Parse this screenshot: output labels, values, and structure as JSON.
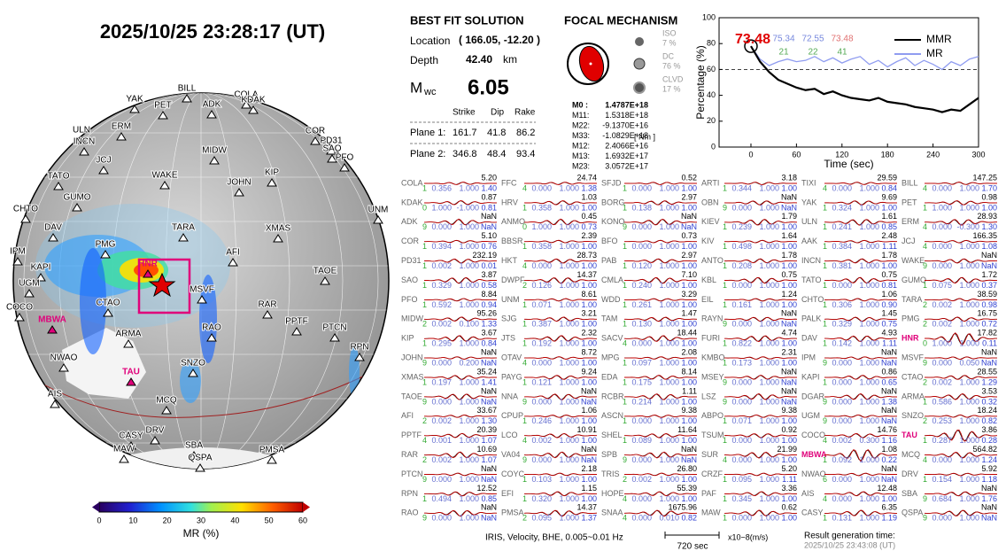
{
  "title": "2025/10/25  23:28:17 (UT)",
  "best_fit": {
    "heading": "BEST FIT SOLUTION",
    "location_label": "Location",
    "location": "( 166.05, -12.20 )",
    "depth_label": "Depth",
    "depth": "42.40",
    "depth_unit": "km",
    "mag_symbol": "M",
    "mag_sub": "wc",
    "magnitude": "6.05",
    "columns": [
      "Strike",
      "Dip",
      "Rake"
    ],
    "planes": [
      [
        "Plane 1:",
        "161.7",
        "41.8",
        "86.2"
      ],
      [
        "Plane 2:",
        "346.8",
        "48.4",
        "93.4"
      ]
    ]
  },
  "focal": {
    "heading": "FOCAL MECHANISM",
    "components": [
      [
        "ISO",
        "7 %"
      ],
      [
        "DC",
        "76 %"
      ],
      [
        "CLVD",
        "17 %"
      ]
    ],
    "moments": [
      [
        "M0 :",
        "1.4787E+18"
      ],
      [
        "M11:",
        "1.5318E+18"
      ],
      [
        "M22:",
        "-9.1370E+16"
      ],
      [
        "M33:",
        "-1.0829E+18"
      ],
      [
        "M12:",
        "2.4066E+16"
      ],
      [
        "M13:",
        "1.6932E+17"
      ],
      [
        "M23:",
        "3.0572E+17"
      ]
    ],
    "unit": "[ Nm ]"
  },
  "chart_data": {
    "type": "line",
    "xlabel": "Time (sec)",
    "ylabel": "Percentage (%)",
    "xlim": [
      -42,
      300
    ],
    "ylim": [
      0,
      100
    ],
    "xticks": [
      0,
      60,
      120,
      180,
      240,
      300
    ],
    "yticks": [
      0,
      20,
      40,
      60,
      80,
      100
    ],
    "threshold": 60,
    "x": [
      0,
      12,
      24,
      36,
      48,
      60,
      72,
      84,
      96,
      108,
      120,
      132,
      144,
      156,
      168,
      180,
      192,
      204,
      216,
      228,
      240,
      252,
      264,
      276,
      288,
      300
    ],
    "series": [
      {
        "name": "MMR",
        "color": "#000000",
        "values": [
          78,
          66,
          58,
          52,
          49,
          46,
          44,
          45,
          41,
          43,
          40,
          38,
          37,
          36,
          38,
          35,
          34,
          33,
          31,
          30,
          29,
          27,
          29,
          28,
          33,
          38
        ]
      },
      {
        "name": "MR",
        "color": "#8f9cf0",
        "values": [
          78,
          68,
          63,
          66,
          68,
          66,
          67,
          70,
          66,
          69,
          65,
          68,
          70,
          64,
          67,
          62,
          66,
          69,
          63,
          67,
          64,
          60,
          66,
          63,
          68,
          70
        ]
      }
    ],
    "annotations": {
      "best": "73.48",
      "mr": [
        "75.34",
        "72.55",
        "73.48"
      ],
      "counts": [
        "21",
        "22",
        "41"
      ]
    }
  },
  "colorbar": {
    "label": "MR (%)",
    "ticks": [
      0,
      10,
      20,
      30,
      40,
      50,
      60
    ]
  },
  "map_stations": [
    "BILL",
    "YAK",
    "PET",
    "ADK",
    "COLA",
    "KDAK",
    "ULN",
    "ERM",
    "INCN",
    "COR",
    "PD31",
    "SAO",
    "PFO",
    "JCJ",
    "MIDW",
    "KIP",
    "TATO",
    "WAKE",
    "JOHN",
    "GUMO",
    "UNM",
    "CHTO",
    "TARA",
    "DAV",
    "XMAS",
    "IPM",
    "KAPI",
    "PMG",
    "HNR",
    "UGM",
    "AFI",
    "TAOE",
    "MSVF",
    "COCO",
    "CTAO",
    "RAR",
    "PPTF",
    "MBWA",
    "ARMA",
    "RAO",
    "PTCN",
    "RPN",
    "NWAO",
    "SNZO",
    "TAU",
    "AIS",
    "MCQ",
    "CASY",
    "DRV",
    "SBA",
    "MAW",
    "QSPA",
    "PMSA"
  ],
  "highlight": [
    "HNR",
    "MBWA",
    "TAU"
  ],
  "stations": [
    [
      "COLA",
      "5.20",
      "1",
      "0.356",
      "1.000",
      "1.40"
    ],
    [
      "KDAK",
      "0.87",
      "0",
      "1.000",
      "-1.000",
      "0.81"
    ],
    [
      "ADK",
      "NaN",
      "9",
      "0.000",
      "1.000",
      "NaN"
    ],
    [
      "COR",
      "5.10",
      "1",
      "0.394",
      "1.000",
      "0.76"
    ],
    [
      "PD31",
      "232.19",
      "1",
      "0.002",
      "1.000",
      "0.01"
    ],
    [
      "SAO",
      "3.87",
      "1",
      "0.329",
      "1.000",
      "0.58"
    ],
    [
      "PFO",
      "8.84",
      "1",
      "0.592",
      "1.000",
      "0.94"
    ],
    [
      "MIDW",
      "95.26",
      "2",
      "0.002",
      "0.100",
      "1.33"
    ],
    [
      "KIP",
      "3.67",
      "1",
      "0.295",
      "1.000",
      "0.84"
    ],
    [
      "JOHN",
      "NaN",
      "9",
      "0.000",
      "0.200",
      "NaN"
    ],
    [
      "XMAS",
      "35.24",
      "1",
      "0.197",
      "1.000",
      "1.41"
    ],
    [
      "TAOE",
      "NaN",
      "9",
      "0.000",
      "1.000",
      "NaN"
    ],
    [
      "AFI",
      "33.67",
      "2",
      "0.002",
      "1.000",
      "1.30"
    ],
    [
      "PPTF",
      "20.39",
      "4",
      "0.001",
      "1.000",
      "1.07"
    ],
    [
      "RAR",
      "10.69",
      "2",
      "0.002",
      "1.000",
      "1.07"
    ],
    [
      "PTCN",
      "NaN",
      "9",
      "0.000",
      "1.000",
      "NaN"
    ],
    [
      "RPN",
      "12.52",
      "1",
      "0.494",
      "1.000",
      "0.85"
    ],
    [
      "RAO",
      "NaN",
      "9",
      "0.000",
      "1.000",
      "NaN"
    ],
    [
      "FFC",
      "24.74",
      "4",
      "0.000",
      "1.000",
      "1.38"
    ],
    [
      "HRV",
      "1.03",
      "1",
      "0.358",
      "1.000",
      "1.00"
    ],
    [
      "ANMO",
      "0.45",
      "0",
      "1.000",
      "1.000",
      "0.73"
    ],
    [
      "BBSR",
      "2.39",
      "1",
      "0.358",
      "1.000",
      "1.00"
    ],
    [
      "HKT",
      "28.73",
      "4",
      "0.000",
      "1.000",
      "1.00"
    ],
    [
      "DWPF",
      "14.37",
      "2",
      "0.126",
      "1.000",
      "1.00"
    ],
    [
      "UNM",
      "8.61",
      "1",
      "0.071",
      "1.000",
      "1.00"
    ],
    [
      "SJG",
      "3.21",
      "1",
      "0.387",
      "1.000",
      "1.00"
    ],
    [
      "JTS",
      "2.32",
      "1",
      "0.192",
      "1.000",
      "1.00"
    ],
    [
      "OTAV",
      "8.72",
      "4",
      "0.000",
      "1.000",
      "1.00"
    ],
    [
      "PAYG",
      "9.24",
      "1",
      "0.121",
      "1.000",
      "1.00"
    ],
    [
      "NNA",
      "NaN",
      "9",
      "0.000",
      "1.000",
      "NaN"
    ],
    [
      "CPUP",
      "1.06",
      "1",
      "0.246",
      "1.000",
      "1.00"
    ],
    [
      "LCO",
      "10.91",
      "4",
      "0.002",
      "1.000",
      "1.00"
    ],
    [
      "VA04",
      "NaN",
      "9",
      "0.000",
      "1.000",
      "NaN"
    ],
    [
      "COYC",
      "2.18",
      "1",
      "0.103",
      "1.000",
      "1.00"
    ],
    [
      "EFI",
      "1.15",
      "1",
      "0.320",
      "1.000",
      "1.00"
    ],
    [
      "PMSA",
      "14.37",
      "2",
      "0.095",
      "1.000",
      "1.37"
    ],
    [
      "SFJD",
      "0.52",
      "1",
      "0.000",
      "1.000",
      "1.00"
    ],
    [
      "BORG",
      "2.97",
      "1",
      "0.138",
      "1.000",
      "1.00"
    ],
    [
      "KONO",
      "NaN",
      "9",
      "0.000",
      "1.000",
      "NaN"
    ],
    [
      "BFO",
      "0.73",
      "1",
      "0.000",
      "1.000",
      "1.00"
    ],
    [
      "PAB",
      "2.97",
      "1",
      "0.120",
      "1.000",
      "1.00"
    ],
    [
      "CMLA",
      "7.10",
      "1",
      "0.240",
      "1.000",
      "1.00"
    ],
    [
      "WDD",
      "3.29",
      "1",
      "0.261",
      "1.000",
      "1.00"
    ],
    [
      "TAM",
      "1.47",
      "1",
      "0.130",
      "1.000",
      "1.00"
    ],
    [
      "SACV",
      "18.44",
      "4",
      "0.000",
      "1.000",
      "1.00"
    ],
    [
      "MPG",
      "2.08",
      "1",
      "0.097",
      "1.000",
      "1.00"
    ],
    [
      "EDA",
      "8.14",
      "1",
      "0.175",
      "1.000",
      "1.00"
    ],
    [
      "RCBR",
      "1.11",
      "1",
      "0.214",
      "1.000",
      "1.00"
    ],
    [
      "ASCN",
      "9.38",
      "1",
      "0.000",
      "1.000",
      "1.00"
    ],
    [
      "SHEL",
      "11.64",
      "1",
      "0.089",
      "1.000",
      "1.00"
    ],
    [
      "SPB",
      "NaN",
      "9",
      "0.000",
      "1.000",
      "NaN"
    ],
    [
      "TRIS",
      "26.80",
      "2",
      "0.002",
      "1.000",
      "1.00"
    ],
    [
      "HOPE",
      "55.39",
      "4",
      "0.000",
      "1.000",
      "1.00"
    ],
    [
      "SNAA",
      "1675.96",
      "4",
      "0.000",
      "0.010",
      "0.82"
    ],
    [
      "ARTI",
      "3.18",
      "1",
      "0.344",
      "1.000",
      "1.00"
    ],
    [
      "OBN",
      "NaN",
      "9",
      "0.000",
      "1.000",
      "NaN"
    ],
    [
      "KIEV",
      "1.79",
      "1",
      "0.239",
      "1.000",
      "1.00"
    ],
    [
      "KIV",
      "1.64",
      "1",
      "0.498",
      "1.000",
      "1.00"
    ],
    [
      "ANTO",
      "1.78",
      "1",
      "0.208",
      "1.000",
      "1.00"
    ],
    [
      "KBL",
      "0.75",
      "1",
      "0.000",
      "1.000",
      "1.00"
    ],
    [
      "EIL",
      "1.24",
      "1",
      "0.161",
      "1.000",
      "1.00"
    ],
    [
      "RAYN",
      "NaN",
      "9",
      "0.000",
      "1.000",
      "NaN"
    ],
    [
      "FURI",
      "4.74",
      "1",
      "0.822",
      "1.000",
      "1.00"
    ],
    [
      "KMBO",
      "2.31",
      "1",
      "0.173",
      "1.000",
      "1.00"
    ],
    [
      "MSEY",
      "NaN",
      "9",
      "0.000",
      "1.000",
      "NaN"
    ],
    [
      "LSZ",
      "NaN",
      "9",
      "0.000",
      "1.000",
      "NaN"
    ],
    [
      "ABPO",
      "9.38",
      "1",
      "0.071",
      "1.000",
      "1.00"
    ],
    [
      "TSUM",
      "0.92",
      "1",
      "0.000",
      "1.000",
      "1.00"
    ],
    [
      "SUR",
      "21.99",
      "4",
      "0.000",
      "1.000",
      "1.00"
    ],
    [
      "CRZF",
      "5.20",
      "1",
      "0.095",
      "1.000",
      "1.11"
    ],
    [
      "PAF",
      "3.36",
      "1",
      "0.345",
      "1.000",
      "1.00"
    ],
    [
      "MAW",
      "0.62",
      "1",
      "0.000",
      "1.000",
      "1.00"
    ],
    [
      "TIXI",
      "29.59",
      "4",
      "0.000",
      "1.000",
      "0.84"
    ],
    [
      "YAK",
      "9.69",
      "1",
      "0.324",
      "1.000",
      "1.00"
    ],
    [
      "ULN",
      "1.61",
      "1",
      "0.241",
      "1.000",
      "0.85"
    ],
    [
      "AAK",
      "2.48",
      "1",
      "0.384",
      "1.000",
      "1.11"
    ],
    [
      "INCN",
      "1.78",
      "1",
      "0.381",
      "1.000",
      "1.00"
    ],
    [
      "TATO",
      "0.75",
      "1",
      "0.000",
      "1.000",
      "0.81"
    ],
    [
      "CHTO",
      "1.06",
      "1",
      "0.306",
      "1.000",
      "0.90"
    ],
    [
      "PALK",
      "1.45",
      "1",
      "0.329",
      "1.000",
      "0.75"
    ],
    [
      "DAV",
      "4.93",
      "1",
      "0.142",
      "1.000",
      "1.11"
    ],
    [
      "IPM",
      "NaN",
      "9",
      "0.000",
      "1.000",
      "NaN"
    ],
    [
      "KAPI",
      "0.86",
      "1",
      "0.000",
      "1.000",
      "0.65"
    ],
    [
      "DGAR",
      "NaN",
      "9",
      "0.000",
      "1.000",
      "1.38"
    ],
    [
      "UGM",
      "NaN",
      "9",
      "0.000",
      "1.000",
      "NaN"
    ],
    [
      "COCO",
      "14.76",
      "4",
      "0.002",
      "0.300",
      "1.16"
    ],
    [
      "MBWA",
      "1.08",
      "1",
      "0.092",
      "1.000",
      "0.22"
    ],
    [
      "NWAO",
      "NaN",
      "6",
      "0.000",
      "1.000",
      "NaN"
    ],
    [
      "AIS",
      "12.48",
      "4",
      "0.000",
      "1.000",
      "1.00"
    ],
    [
      "CASY",
      "6.35",
      "1",
      "0.131",
      "1.000",
      "1.19"
    ],
    [
      "BILL",
      "147.25",
      "4",
      "0.000",
      "1.000",
      "1.70"
    ],
    [
      "PET",
      "0.98",
      "1",
      "1.000",
      "1.000",
      "1.00"
    ],
    [
      "ERM",
      "28.93",
      "4",
      "0.000",
      "-0.300",
      "1.30"
    ],
    [
      "JCJ",
      "166.35",
      "4",
      "0.000",
      "1.000",
      "1.08"
    ],
    [
      "WAKE",
      "NaN",
      "9",
      "0.000",
      "1.000",
      "NaN"
    ],
    [
      "GUMO",
      "1.72",
      "1",
      "0.075",
      "1.000",
      "0.37"
    ],
    [
      "TARA",
      "38.59",
      "2",
      "0.002",
      "1.000",
      "0.98"
    ],
    [
      "PMG",
      "16.75",
      "2",
      "0.002",
      "1.000",
      "0.72"
    ],
    [
      "HNR",
      "17.82",
      "0",
      "1.000",
      "1.000",
      "0.11"
    ],
    [
      "MSVF",
      "NaN",
      "9",
      "0.000",
      "0.050",
      "NaN"
    ],
    [
      "CTAO",
      "28.55",
      "2",
      "0.002",
      "1.000",
      "1.29"
    ],
    [
      "ARMA",
      "3.53",
      "1",
      "0.586",
      "1.000",
      "0.32"
    ],
    [
      "SNZO",
      "18.24",
      "2",
      "0.253",
      "1.000",
      "0.82"
    ],
    [
      "TAU",
      "3.86",
      "1",
      "0.287",
      "1.000",
      "0.28"
    ],
    [
      "MCQ",
      "564.82",
      "4",
      "0.000",
      "1.000",
      "1.24"
    ],
    [
      "DRV",
      "5.92",
      "1",
      "0.154",
      "1.000",
      "1.18"
    ],
    [
      "SBA",
      "NaN",
      "9",
      "0.684",
      "1.000",
      "1.76"
    ],
    [
      "QSPA",
      "NaN",
      "9",
      "0.000",
      "1.000",
      "NaN"
    ]
  ],
  "footer": {
    "source": "IRIS, Velocity,   BHE,  0.005~0.01 Hz",
    "scale": "720 sec",
    "unit": "x10−8(m/s)",
    "gen_label": "Result generation time:",
    "gen_time": "2025/10/25 23:43:08 (UT)"
  }
}
